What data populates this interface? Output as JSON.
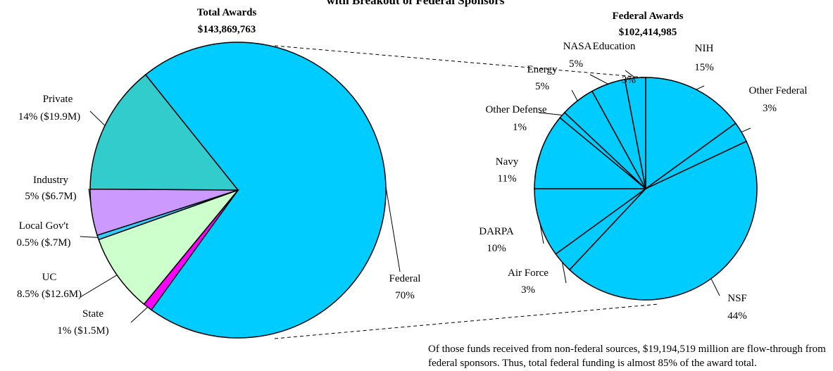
{
  "chart_data": [
    {
      "type": "pie",
      "title": "with Breakout of Federal Sponsors",
      "subtitle": [
        "Total Awards",
        "$143,869,763"
      ],
      "categories": [
        "Federal",
        "State",
        "UC",
        "Local Gov't",
        "Industry",
        "Private"
      ],
      "values": [
        70,
        1,
        8.5,
        0.5,
        5,
        14
      ],
      "value_labels": [
        "70%",
        "1% ($1.5M)",
        "8.5% ($12.6M)",
        "0.5% ($.7M)",
        "5% ($6.7M)",
        "14% ($19.9M)"
      ],
      "colors": [
        "#00ccff",
        "#ff00ff",
        "#ccffcc",
        "#33ccff",
        "#cc99ff",
        "#33cccc"
      ]
    },
    {
      "type": "pie",
      "subtitle": [
        "Federal Awards",
        "$102,414,985"
      ],
      "categories": [
        "NSF",
        "Air Force",
        "DARPA",
        "Navy",
        "Other Defense",
        "Energy",
        "NASA",
        "Education",
        "NIH",
        "Other Federal"
      ],
      "values": [
        44,
        3,
        10,
        11,
        1,
        5,
        5,
        3,
        15,
        3
      ],
      "value_labels": [
        "44%",
        "3%",
        "10%",
        "11%",
        "1%",
        "5%",
        "5%",
        "3%",
        "15%",
        "3%"
      ],
      "colors": [
        "#00ccff",
        "#00ccff",
        "#00ccff",
        "#00ccff",
        "#00ccff",
        "#00ccff",
        "#00ccff",
        "#00ccff",
        "#00ccff",
        "#00ccff"
      ]
    }
  ],
  "note": "Of those funds received from non-federal sources,  $19,194,519 million are flow-through from federal sponsors.  Thus, total federal funding is almost 85% of the award total."
}
